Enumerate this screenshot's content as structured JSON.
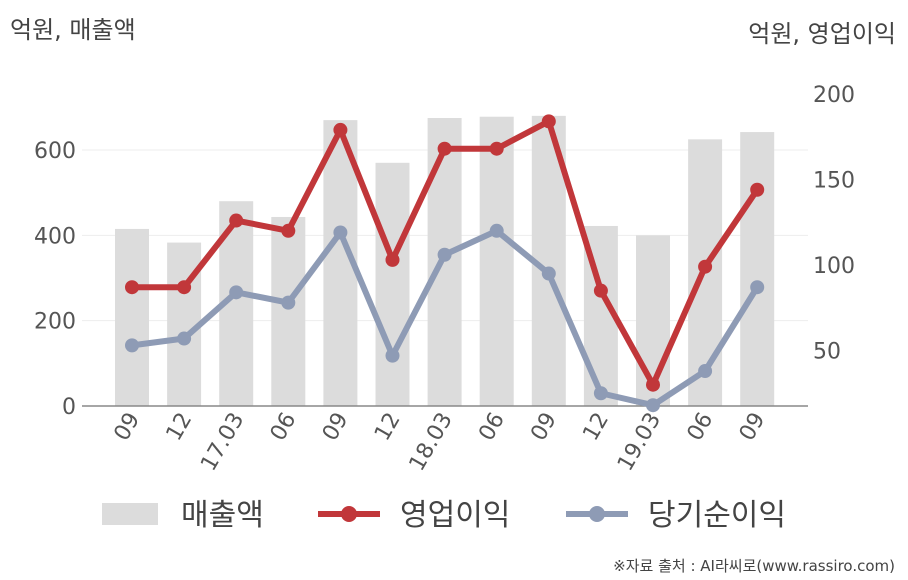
{
  "chart_data": {
    "type": "bar+line",
    "categories": [
      "09",
      "12",
      "17.03",
      "06",
      "09",
      "12",
      "18.03",
      "06",
      "09",
      "12",
      "19.03",
      "06",
      "09"
    ],
    "left_axis": {
      "unit_label": "억원, 매출액",
      "ylim": [
        0,
        700
      ],
      "ticks": [
        0,
        200,
        400,
        600
      ]
    },
    "right_axis": {
      "unit_label": "억원, 영업이익",
      "ylim": [
        15,
        200
      ],
      "ticks": [
        50,
        100,
        150,
        200
      ]
    },
    "series": [
      {
        "name": "매출액",
        "type": "bar",
        "axis": "left",
        "color": "#dcdcdc",
        "values": [
          415,
          383,
          480,
          443,
          670,
          570,
          675,
          678,
          680,
          422,
          400,
          625,
          642
        ]
      },
      {
        "name": "영업이익",
        "type": "line",
        "axis": "right",
        "color": "#c1373a",
        "values": [
          87,
          87,
          126,
          120,
          179,
          103,
          168,
          168,
          184,
          85,
          30,
          99,
          144
        ]
      },
      {
        "name": "당기순이익",
        "type": "line",
        "axis": "right",
        "color": "#8e9bb5",
        "values": [
          53,
          57,
          84,
          78,
          119,
          47,
          106,
          120,
          95,
          25,
          18,
          38,
          87
        ]
      }
    ],
    "grid": true,
    "legend_position": "bottom"
  },
  "source_text": "※자료 출처 : AI라씨로(www.rassiro.com)"
}
